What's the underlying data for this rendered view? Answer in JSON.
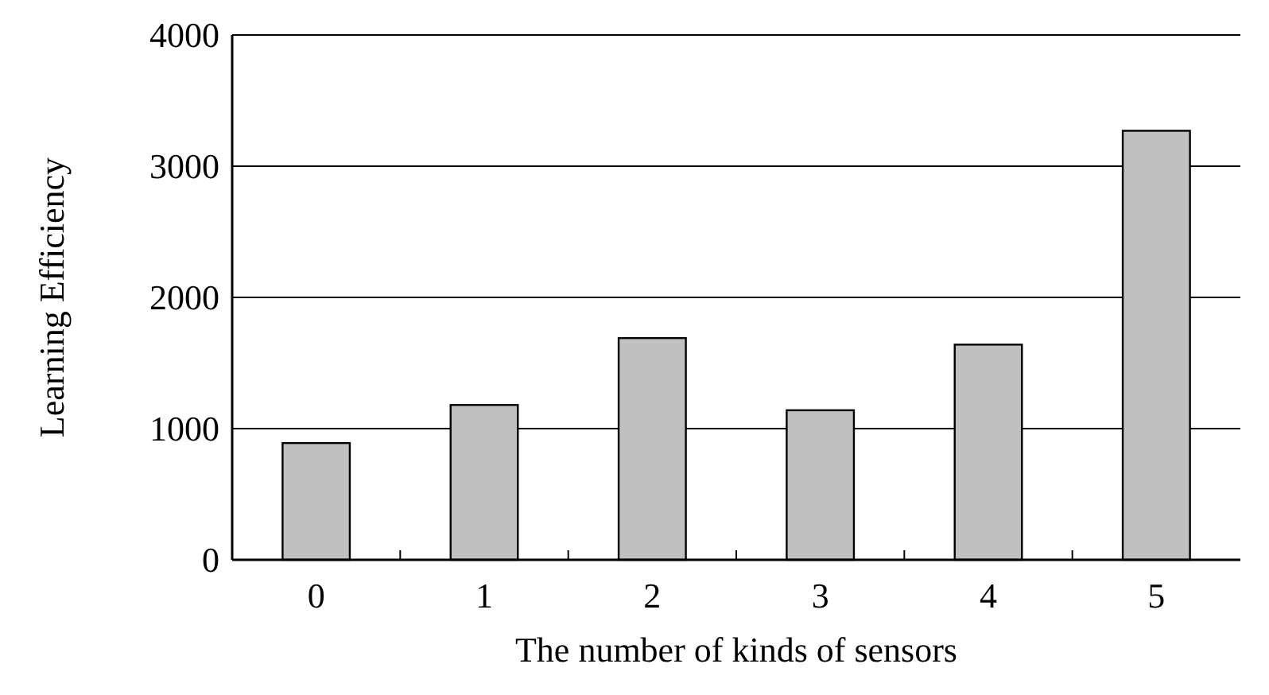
{
  "chart_data": {
    "type": "bar",
    "xlabel": "The number of kinds of sensors",
    "ylabel": "Learning Efficiency",
    "categories": [
      "0",
      "1",
      "2",
      "3",
      "4",
      "5"
    ],
    "values": [
      890,
      1180,
      1690,
      1140,
      1640,
      3270
    ],
    "color": "#c0c0c0",
    "ylim": [
      0,
      4000
    ],
    "yticks": [
      0,
      1000,
      2000,
      3000,
      4000
    ],
    "grid": "y"
  }
}
